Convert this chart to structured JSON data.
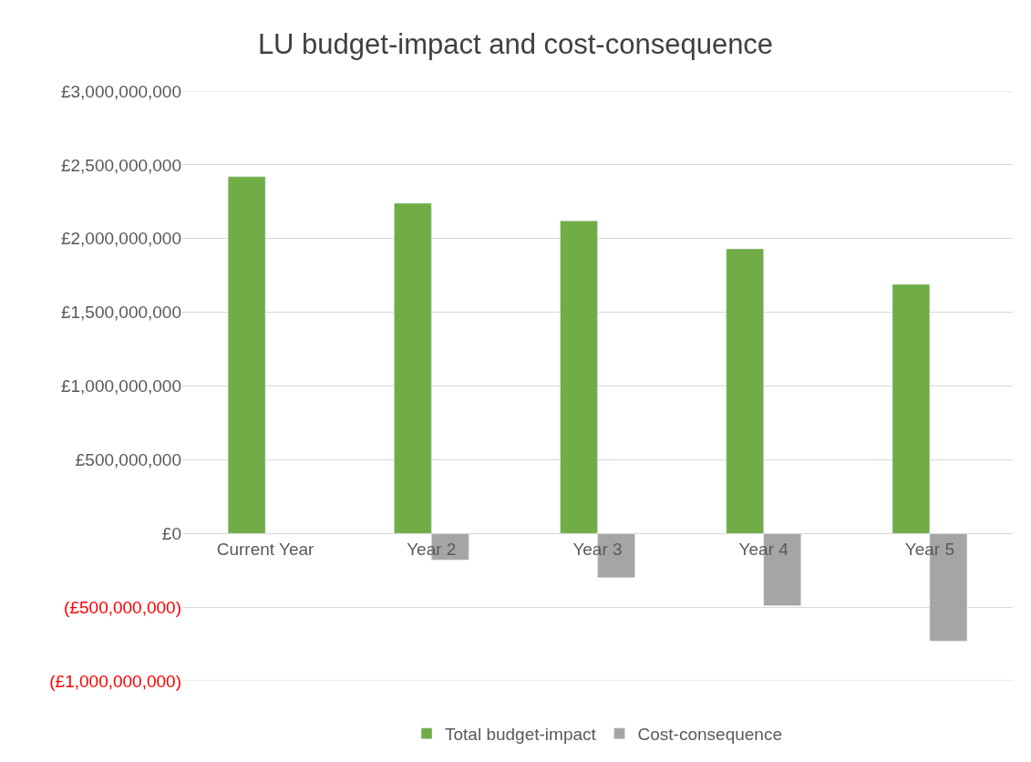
{
  "chart_data": {
    "type": "bar",
    "title": "LU budget-impact and cost-consequence",
    "categories": [
      "Current Year",
      "Year 2",
      "Year 3",
      "Year 4",
      "Year 5"
    ],
    "series": [
      {
        "name": "Total budget-impact",
        "color": "#70ad47",
        "values": [
          2420000000,
          2240000000,
          2120000000,
          1930000000,
          1690000000
        ]
      },
      {
        "name": "Cost-consequence",
        "color": "#a5a5a5",
        "values": [
          null,
          -180000000,
          -300000000,
          -490000000,
          -730000000
        ]
      }
    ],
    "ylim": [
      -1000000000,
      3000000000
    ],
    "yticks": [
      {
        "value": -1000000000,
        "label": "(£1,000,000,000)"
      },
      {
        "value": -500000000,
        "label": "(£500,000,000)"
      },
      {
        "value": 0,
        "label": "£0"
      },
      {
        "value": 500000000,
        "label": "£500,000,000"
      },
      {
        "value": 1000000000,
        "label": "£1,000,000,000"
      },
      {
        "value": 1500000000,
        "label": "£1,500,000,000"
      },
      {
        "value": 2000000000,
        "label": "£2,000,000,000"
      },
      {
        "value": 2500000000,
        "label": "£2,500,000,000"
      },
      {
        "value": 3000000000,
        "label": "£3,000,000,000"
      }
    ],
    "grid": "y",
    "legend": "bottom"
  }
}
